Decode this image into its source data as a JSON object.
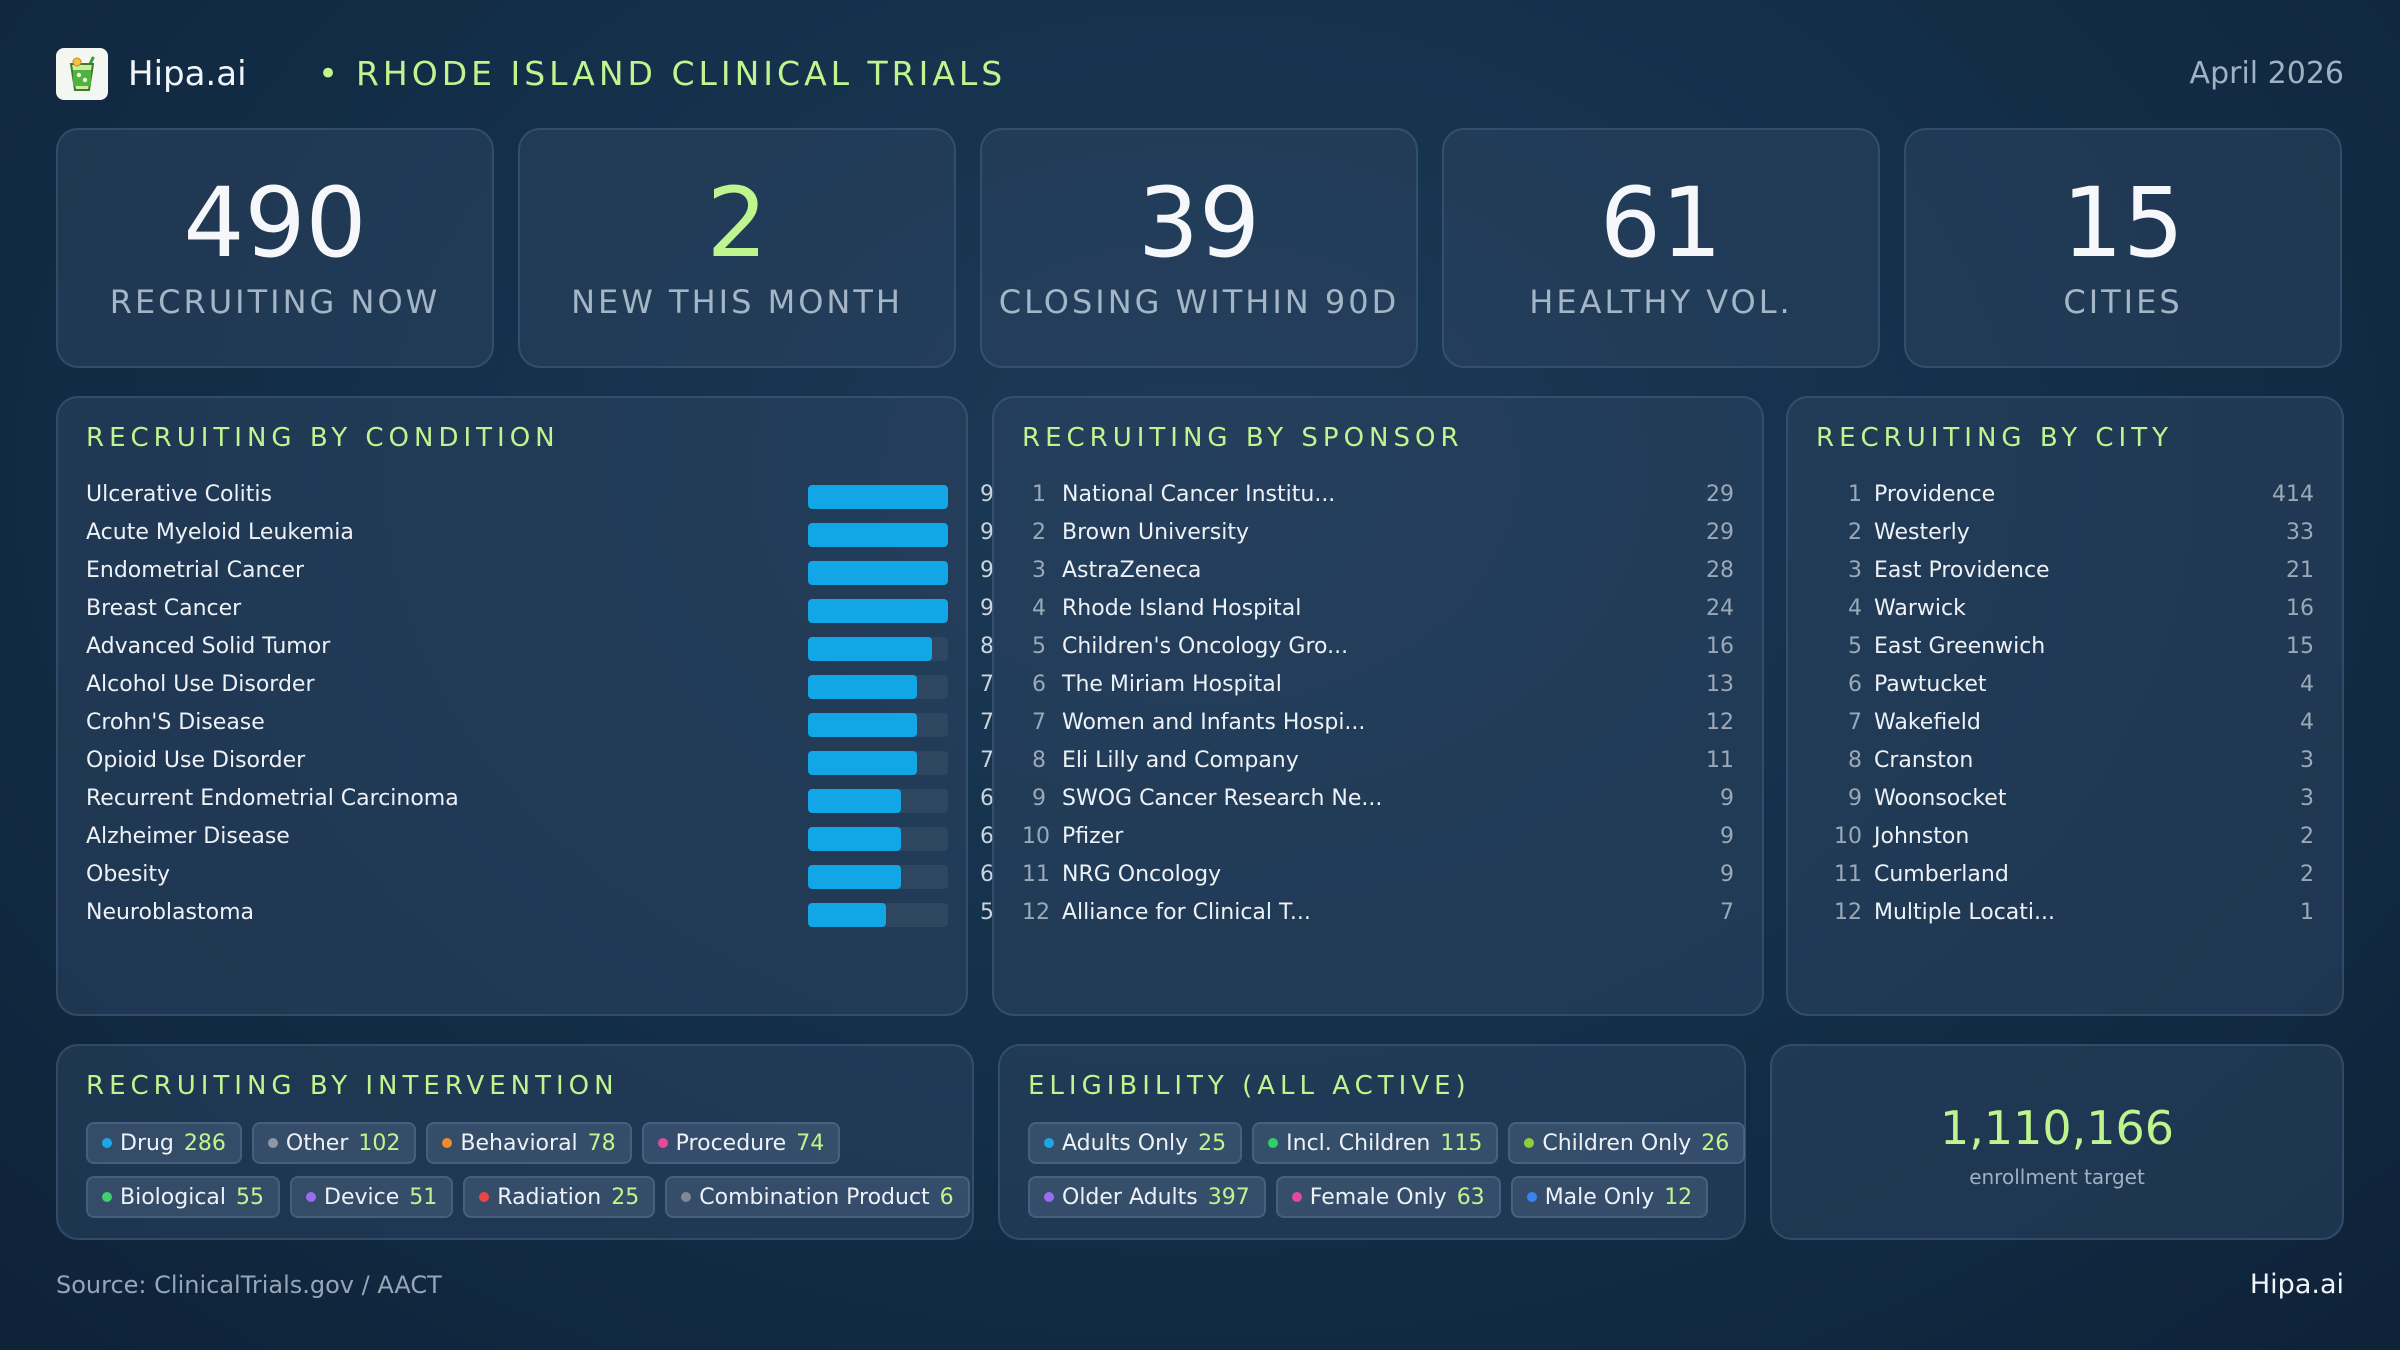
{
  "header": {
    "brand": "Hipa.ai",
    "separator": "•",
    "title": "RHODE ISLAND CLINICAL TRIALS",
    "date": "April 2026",
    "logo_icon": "cocktail-glass-icon"
  },
  "kpis": [
    {
      "value": "490",
      "label": "RECRUITING NOW"
    },
    {
      "value": "2",
      "label": "NEW THIS MONTH"
    },
    {
      "value": "39",
      "label": "CLOSING WITHIN 90D"
    },
    {
      "value": "61",
      "label": "HEALTHY VOL."
    },
    {
      "value": "15",
      "label": "CITIES"
    }
  ],
  "condition": {
    "title": "RECRUITING BY CONDITION",
    "max": 9,
    "items": [
      {
        "label": "Ulcerative Colitis",
        "value": 9
      },
      {
        "label": "Acute Myeloid Leukemia",
        "value": 9
      },
      {
        "label": "Endometrial Cancer",
        "value": 9
      },
      {
        "label": "Breast Cancer",
        "value": 9
      },
      {
        "label": "Advanced Solid Tumor",
        "value": 8
      },
      {
        "label": "Alcohol Use Disorder",
        "value": 7
      },
      {
        "label": "Crohn'S Disease",
        "value": 7
      },
      {
        "label": "Opioid Use Disorder",
        "value": 7
      },
      {
        "label": "Recurrent Endometrial Carcinoma",
        "value": 6
      },
      {
        "label": "Alzheimer Disease",
        "value": 6
      },
      {
        "label": "Obesity",
        "value": 6
      },
      {
        "label": "Neuroblastoma",
        "value": 5
      }
    ]
  },
  "sponsor": {
    "title": "RECRUITING BY SPONSOR",
    "items": [
      {
        "rank": "1",
        "label": "National Cancer Institu...",
        "value": "29"
      },
      {
        "rank": "2",
        "label": "Brown University",
        "value": "29"
      },
      {
        "rank": "3",
        "label": "AstraZeneca",
        "value": "28"
      },
      {
        "rank": "4",
        "label": "Rhode Island Hospital",
        "value": "24"
      },
      {
        "rank": "5",
        "label": "Children's Oncology Gro...",
        "value": "16"
      },
      {
        "rank": "6",
        "label": "The Miriam Hospital",
        "value": "13"
      },
      {
        "rank": "7",
        "label": "Women and Infants Hospi...",
        "value": "12"
      },
      {
        "rank": "8",
        "label": "Eli Lilly and Company",
        "value": "11"
      },
      {
        "rank": "9",
        "label": "SWOG Cancer Research Ne...",
        "value": "9"
      },
      {
        "rank": "10",
        "label": "Pfizer",
        "value": "9"
      },
      {
        "rank": "11",
        "label": "NRG Oncology",
        "value": "9"
      },
      {
        "rank": "12",
        "label": "Alliance for Clinical T...",
        "value": "7"
      }
    ]
  },
  "city": {
    "title": "RECRUITING BY CITY",
    "items": [
      {
        "rank": "1",
        "label": "Providence",
        "value": "414"
      },
      {
        "rank": "2",
        "label": "Westerly",
        "value": "33"
      },
      {
        "rank": "3",
        "label": "East Providence",
        "value": "21"
      },
      {
        "rank": "4",
        "label": "Warwick",
        "value": "16"
      },
      {
        "rank": "5",
        "label": "East Greenwich",
        "value": "15"
      },
      {
        "rank": "6",
        "label": "Pawtucket",
        "value": "4"
      },
      {
        "rank": "7",
        "label": "Wakefield",
        "value": "4"
      },
      {
        "rank": "8",
        "label": "Cranston",
        "value": "3"
      },
      {
        "rank": "9",
        "label": "Woonsocket",
        "value": "3"
      },
      {
        "rank": "10",
        "label": "Johnston",
        "value": "2"
      },
      {
        "rank": "11",
        "label": "Cumberland",
        "value": "2"
      },
      {
        "rank": "12",
        "label": "Multiple Locati...",
        "value": "1"
      }
    ]
  },
  "intervention": {
    "title": "RECRUITING BY INTERVENTION",
    "rows": [
      [
        {
          "label": "Drug",
          "count": "286",
          "color": "#1ea7e6"
        },
        {
          "label": "Other",
          "count": "102",
          "color": "#8d98a4"
        },
        {
          "label": "Behavioral",
          "count": "78",
          "color": "#f28a2e"
        },
        {
          "label": "Procedure",
          "count": "74",
          "color": "#e6489a"
        }
      ],
      [
        {
          "label": "Biological",
          "count": "55",
          "color": "#3ecf6e"
        },
        {
          "label": "Device",
          "count": "51",
          "color": "#9b6cf0"
        },
        {
          "label": "Radiation",
          "count": "25",
          "color": "#ea4545"
        },
        {
          "label": "Combination Product",
          "count": "6",
          "color": "#7e8995"
        }
      ]
    ]
  },
  "eligibility": {
    "title": "ELIGIBILITY (ALL ACTIVE)",
    "rows": [
      [
        {
          "label": "Adults Only",
          "count": "25",
          "color": "#1ea7e6"
        },
        {
          "label": "Incl. Children",
          "count": "115",
          "color": "#2fcf6a"
        },
        {
          "label": "Children Only",
          "count": "26",
          "color": "#8ccf3a"
        }
      ],
      [
        {
          "label": "Older Adults",
          "count": "397",
          "color": "#9b6cf0"
        },
        {
          "label": "Female Only",
          "count": "63",
          "color": "#e6489a"
        },
        {
          "label": "Male Only",
          "count": "12",
          "color": "#3a82f0"
        }
      ]
    ]
  },
  "enrollment": {
    "value": "1,110,166",
    "label": "enrollment target"
  },
  "footer": {
    "source": "Source: ClinicalTrials.gov / AACT",
    "brand": "Hipa.ai"
  }
}
